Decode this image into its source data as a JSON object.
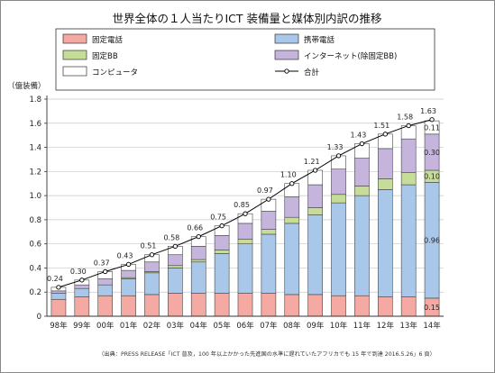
{
  "title": "世界全体の１人当たりICT 装備量と媒体別内訳の推移",
  "y_unit_label": "（億装備）",
  "source_note": "（出典：PRESS RELEASE「ICT 普及，100 年以上かかった先進国の水準に遅れていたアフリカでも 15 年で到達 2016.5.26」6 頁）",
  "colors": {
    "fixed_phone": "#f4a9a2",
    "mobile_phone": "#a9c7e8",
    "fixed_bb": "#c6dd9a",
    "internet": "#c5b4db",
    "computer": "#ffffff",
    "total_line": "#000000"
  },
  "chart_data": {
    "type": "bar",
    "stacked": true,
    "categories": [
      "98年",
      "99年",
      "00年",
      "01年",
      "02年",
      "03年",
      "04年",
      "05年",
      "06年",
      "07年",
      "08年",
      "09年",
      "10年",
      "11年",
      "12年",
      "13年",
      "14年"
    ],
    "ylim": [
      0,
      1.8
    ],
    "yticks": [
      "0",
      "0.2",
      "0.4",
      "0.6",
      "0.8",
      "1.0",
      "1.2",
      "1.4",
      "1.6",
      "1.8"
    ],
    "grid": true,
    "legend_position": "top",
    "series": [
      {
        "key": "fixed_phone",
        "name": "固定電話",
        "values": [
          0.14,
          0.16,
          0.17,
          0.17,
          0.18,
          0.19,
          0.19,
          0.19,
          0.19,
          0.19,
          0.18,
          0.18,
          0.17,
          0.17,
          0.16,
          0.16,
          0.15
        ]
      },
      {
        "key": "mobile_phone",
        "name": "携帯電話",
        "values": [
          0.05,
          0.07,
          0.09,
          0.14,
          0.18,
          0.21,
          0.26,
          0.33,
          0.41,
          0.49,
          0.59,
          0.66,
          0.77,
          0.83,
          0.89,
          0.93,
          0.96
        ]
      },
      {
        "key": "fixed_bb",
        "name": "固定BB",
        "values": [
          0.0,
          0.0,
          0.0,
          0.01,
          0.01,
          0.02,
          0.02,
          0.03,
          0.04,
          0.04,
          0.05,
          0.06,
          0.07,
          0.08,
          0.09,
          0.1,
          0.1
        ]
      },
      {
        "key": "internet",
        "name": "インターネット(除固定BB)",
        "values": [
          0.02,
          0.03,
          0.05,
          0.06,
          0.08,
          0.09,
          0.11,
          0.12,
          0.13,
          0.15,
          0.17,
          0.19,
          0.21,
          0.23,
          0.25,
          0.28,
          0.3
        ]
      },
      {
        "key": "computer",
        "name": "コンピュータ",
        "values": [
          0.03,
          0.04,
          0.06,
          0.05,
          0.06,
          0.07,
          0.08,
          0.08,
          0.08,
          0.1,
          0.11,
          0.12,
          0.11,
          0.12,
          0.12,
          0.11,
          0.11
        ]
      }
    ],
    "total": {
      "name": "合計",
      "values": [
        0.24,
        0.3,
        0.37,
        0.43,
        0.51,
        0.58,
        0.66,
        0.75,
        0.85,
        0.97,
        1.1,
        1.21,
        1.33,
        1.43,
        1.51,
        1.58,
        1.63
      ]
    },
    "last_bar_labels": {
      "fixed_phone": "0.15",
      "mobile_phone": "0.96",
      "fixed_bb": "0.10",
      "internet": "0.30",
      "computer": "0.11"
    }
  }
}
